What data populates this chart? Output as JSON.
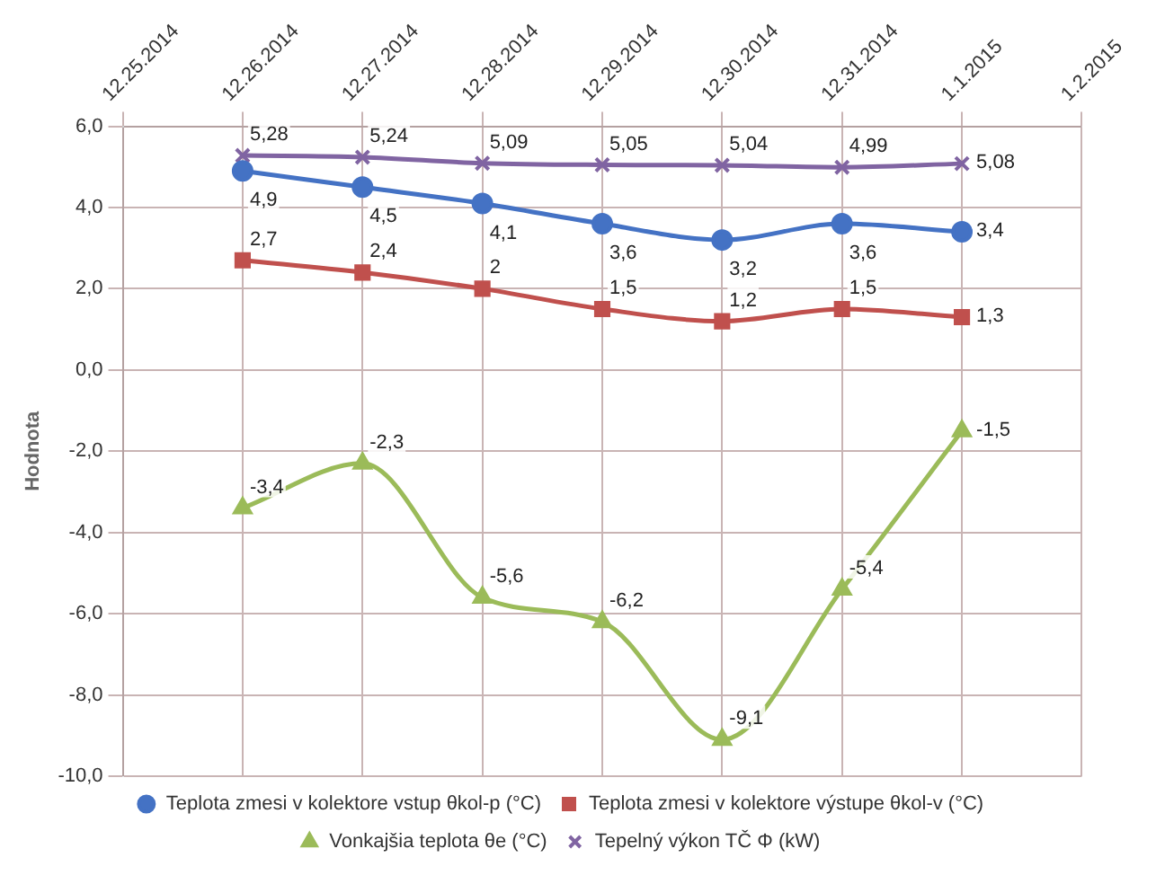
{
  "chart_data": {
    "type": "line",
    "ylabel": "Hodnota",
    "x": [
      "2014-12-26",
      "2014-12-27",
      "2014-12-28",
      "2014-12-29",
      "2014-12-30",
      "2014-12-31",
      "2015-01-01"
    ],
    "xlim": [
      "2014-12-25",
      "2015-01-02"
    ],
    "xticks": [
      {
        "value": "2014-12-25",
        "label": "12.25.2014"
      },
      {
        "value": "2014-12-26",
        "label": "12.26.2014"
      },
      {
        "value": "2014-12-27",
        "label": "12.27.2014"
      },
      {
        "value": "2014-12-28",
        "label": "12.28.2014"
      },
      {
        "value": "2014-12-29",
        "label": "12.29.2014"
      },
      {
        "value": "2014-12-30",
        "label": "12.30.2014"
      },
      {
        "value": "2014-12-31",
        "label": "12.31.2014"
      },
      {
        "value": "2015-01-01",
        "label": "1.1.2015"
      },
      {
        "value": "2015-01-02",
        "label": "1.2.2015"
      }
    ],
    "ylim": [
      -10,
      6
    ],
    "yticks": [
      {
        "value": -10,
        "label": "-10,0"
      },
      {
        "value": -8,
        "label": "-8,0"
      },
      {
        "value": -6,
        "label": "-6,0"
      },
      {
        "value": -4,
        "label": "-4,0"
      },
      {
        "value": -2,
        "label": "-2,0"
      },
      {
        "value": 0,
        "label": "0,0"
      },
      {
        "value": 2,
        "label": "2,0"
      },
      {
        "value": 4,
        "label": "4,0"
      },
      {
        "value": 6,
        "label": "6,0"
      }
    ],
    "grid": true,
    "legend": "bottom",
    "series": [
      {
        "name": "Teplota zmesi v kolektore vstup θkol-p (°C)",
        "color": "#4472c4",
        "marker": "circle",
        "values": [
          4.9,
          4.5,
          4.1,
          3.6,
          3.2,
          3.6,
          3.4
        ],
        "value_labels": [
          "4,9",
          "4,5",
          "4,1",
          "3,6",
          "3,2",
          "3,6",
          "3,4"
        ]
      },
      {
        "name": "Teplota zmesi v kolektore výstupe θkol-v (°C)",
        "color": "#c0504d",
        "marker": "square",
        "values": [
          2.7,
          2.4,
          2,
          1.5,
          1.2,
          1.5,
          1.3
        ],
        "value_labels": [
          "2,7",
          "2,4",
          "2",
          "1,5",
          "1,2",
          "1,5",
          "1,3"
        ]
      },
      {
        "name": "Vonkajšia teplota θe (°C)",
        "color": "#9bbb59",
        "marker": "triangle",
        "values": [
          -3.4,
          -2.3,
          -5.6,
          -6.2,
          -9.1,
          -5.4,
          -1.5
        ],
        "value_labels": [
          "-3,4",
          "-2,3",
          "-5,6",
          "-6,2",
          "-9,1",
          "-5,4",
          "-1,5"
        ]
      },
      {
        "name": "Tepelný výkon TČ Φ (kW)",
        "color": "#8064a2",
        "marker": "cross",
        "values": [
          5.28,
          5.24,
          5.09,
          5.05,
          5.04,
          4.99,
          5.08
        ],
        "value_labels": [
          "5,28",
          "5,24",
          "5,09",
          "5,05",
          "5,04",
          "4,99",
          "5,08"
        ]
      }
    ]
  }
}
